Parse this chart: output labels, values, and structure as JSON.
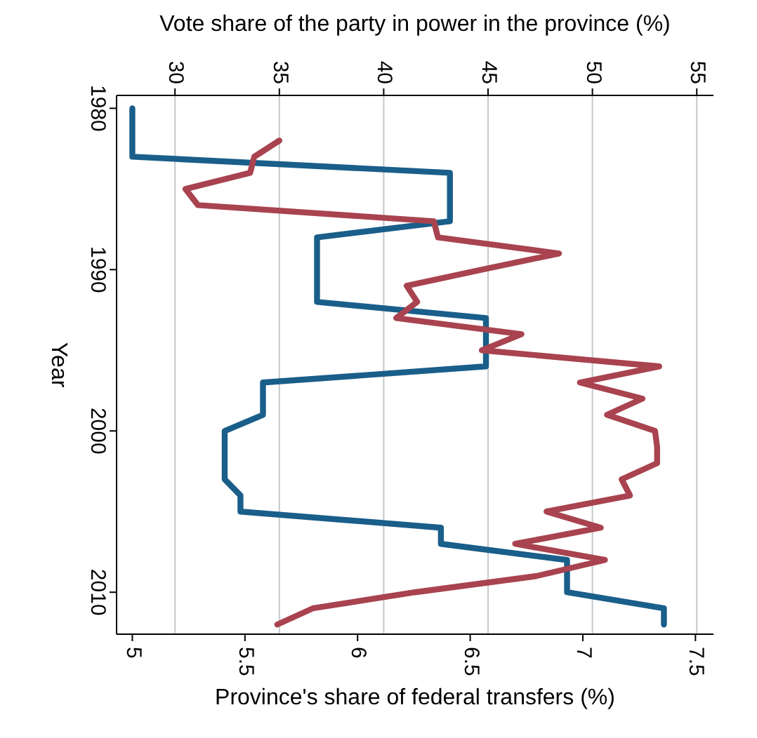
{
  "chart_data": {
    "type": "line",
    "orientation": "horizontal",
    "xlabel": "Province's share of federal transfers (%)",
    "x2label": "Vote share of the party in power in the province (%)",
    "ylabel": "Year",
    "xlim": [
      4.93,
      7.58
    ],
    "xticks": [
      5,
      5.5,
      6,
      6.5,
      7,
      7.5
    ],
    "x2lim": [
      27.2,
      55.8
    ],
    "x2ticks": [
      30,
      35,
      40,
      45,
      50,
      55
    ],
    "ylim": [
      2012.6,
      1979.2
    ],
    "yticks": [
      1980,
      1990,
      2000,
      2010
    ],
    "grid": "x",
    "line_style": "solid",
    "series": [
      {
        "color": "#1a5e8a",
        "x": [
          1980,
          1981,
          1982,
          1983,
          1984,
          1985,
          1986,
          1987,
          1988,
          1989,
          1990,
          1991,
          1992,
          1993,
          1994,
          1995,
          1996,
          1997,
          1998,
          1999,
          2000,
          2001,
          2002,
          2003,
          2004,
          2005,
          2006,
          2007,
          2008,
          2009,
          2010,
          2011,
          2012
        ],
        "values": [
          5.0,
          5.0,
          5.0,
          5.0,
          6.41,
          6.41,
          6.41,
          6.41,
          5.82,
          5.82,
          5.82,
          5.82,
          5.82,
          6.57,
          6.57,
          6.57,
          6.57,
          5.58,
          5.58,
          5.58,
          5.41,
          5.41,
          5.41,
          5.41,
          5.48,
          5.48,
          6.37,
          6.37,
          6.93,
          6.93,
          6.93,
          7.36,
          7.36
        ]
      },
      {
        "color": "#a8434f",
        "axis": "x2",
        "x": [
          1982,
          1983,
          1984,
          1985,
          1986,
          1987,
          1988,
          1989,
          1990,
          1991,
          1992,
          1993,
          1994,
          1995,
          1996,
          1997,
          1998,
          1999,
          2000,
          2001,
          2002,
          2003,
          2004,
          2005,
          2006,
          2007,
          2008,
          2009,
          2010,
          2011,
          2012
        ],
        "values": [
          35.0,
          33.8,
          33.6,
          30.5,
          31.1,
          42.4,
          42.6,
          48.4,
          44.7,
          41.1,
          41.6,
          40.6,
          46.6,
          44.7,
          53.2,
          49.4,
          52.4,
          50.7,
          53.0,
          53.1,
          53.1,
          51.4,
          51.8,
          47.8,
          50.4,
          46.3,
          50.6,
          47.3,
          41.5,
          36.6,
          34.9
        ]
      }
    ]
  }
}
